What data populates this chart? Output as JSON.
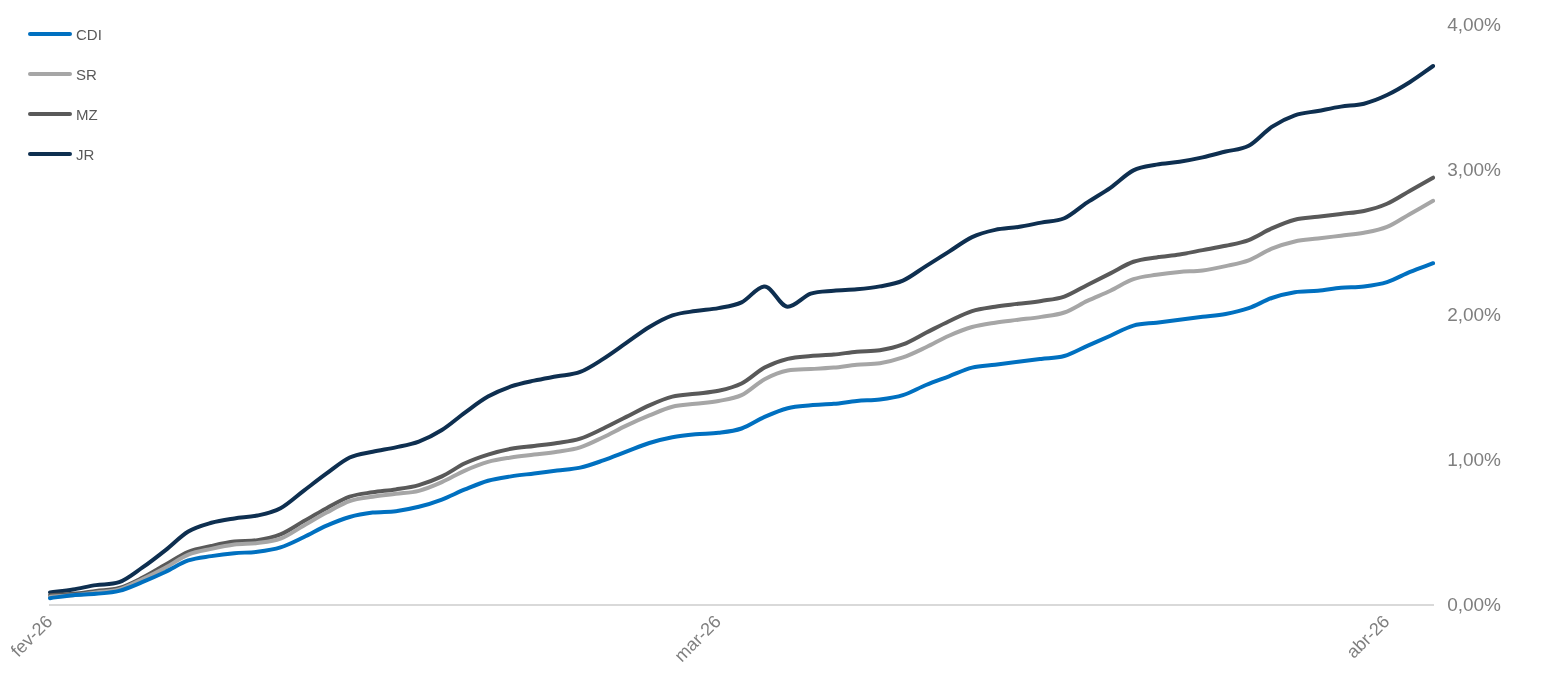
{
  "chart_data": {
    "type": "line",
    "categories": [
      "fev-26",
      null,
      null,
      null,
      null,
      null,
      null,
      null,
      null,
      null,
      null,
      null,
      null,
      null,
      null,
      null,
      null,
      null,
      null,
      null,
      null,
      null,
      null,
      null,
      null,
      null,
      null,
      null,
      null,
      "mar-26",
      null,
      null,
      null,
      null,
      null,
      null,
      null,
      null,
      null,
      null,
      null,
      null,
      null,
      null,
      null,
      null,
      null,
      null,
      null,
      null,
      null,
      null,
      null,
      null,
      null,
      null,
      null,
      null,
      "abr-26",
      null,
      null
    ],
    "series": [
      {
        "name": "CDI",
        "color": "#0070c0",
        "values": [
          0.05,
          0.07,
          0.08,
          0.1,
          0.16,
          0.23,
          0.31,
          0.34,
          0.36,
          0.37,
          0.4,
          0.47,
          0.55,
          0.61,
          0.64,
          0.65,
          0.68,
          0.73,
          0.8,
          0.86,
          0.89,
          0.91,
          0.93,
          0.95,
          1.0,
          1.06,
          1.12,
          1.16,
          1.18,
          1.19,
          1.22,
          1.3,
          1.36,
          1.38,
          1.39,
          1.41,
          1.42,
          1.45,
          1.52,
          1.58,
          1.64,
          1.66,
          1.68,
          1.7,
          1.72,
          1.79,
          1.86,
          1.93,
          1.95,
          1.97,
          1.99,
          2.01,
          2.05,
          2.12,
          2.16,
          2.17,
          2.19,
          2.2,
          2.23,
          2.3,
          2.36
        ]
      },
      {
        "name": "SR",
        "color": "#a6a6a6",
        "values": [
          0.06,
          0.07,
          0.09,
          0.11,
          0.18,
          0.26,
          0.35,
          0.39,
          0.42,
          0.43,
          0.46,
          0.55,
          0.64,
          0.72,
          0.75,
          0.77,
          0.79,
          0.85,
          0.93,
          0.99,
          1.02,
          1.04,
          1.06,
          1.09,
          1.16,
          1.24,
          1.31,
          1.37,
          1.39,
          1.41,
          1.45,
          1.56,
          1.62,
          1.63,
          1.64,
          1.66,
          1.67,
          1.71,
          1.78,
          1.86,
          1.92,
          1.95,
          1.97,
          1.99,
          2.02,
          2.1,
          2.17,
          2.25,
          2.28,
          2.3,
          2.31,
          2.34,
          2.38,
          2.46,
          2.51,
          2.53,
          2.55,
          2.57,
          2.61,
          2.7,
          2.79
        ]
      },
      {
        "name": "MZ",
        "color": "#595959",
        "values": [
          0.07,
          0.08,
          0.1,
          0.12,
          0.19,
          0.28,
          0.37,
          0.41,
          0.44,
          0.45,
          0.49,
          0.58,
          0.67,
          0.75,
          0.78,
          0.8,
          0.83,
          0.89,
          0.98,
          1.04,
          1.08,
          1.1,
          1.12,
          1.15,
          1.22,
          1.3,
          1.38,
          1.44,
          1.46,
          1.48,
          1.53,
          1.64,
          1.7,
          1.72,
          1.73,
          1.75,
          1.76,
          1.8,
          1.88,
          1.96,
          2.03,
          2.06,
          2.08,
          2.1,
          2.13,
          2.21,
          2.29,
          2.37,
          2.4,
          2.42,
          2.45,
          2.48,
          2.52,
          2.6,
          2.66,
          2.68,
          2.7,
          2.72,
          2.77,
          2.86,
          2.95
        ]
      },
      {
        "name": "JR",
        "color": "#0e2f50",
        "values": [
          0.09,
          0.11,
          0.14,
          0.16,
          0.26,
          0.38,
          0.51,
          0.57,
          0.6,
          0.62,
          0.67,
          0.79,
          0.91,
          1.02,
          1.06,
          1.09,
          1.13,
          1.21,
          1.33,
          1.44,
          1.51,
          1.55,
          1.58,
          1.61,
          1.7,
          1.81,
          1.92,
          2.0,
          2.03,
          2.05,
          2.09,
          2.2,
          2.06,
          2.15,
          2.17,
          2.18,
          2.2,
          2.24,
          2.34,
          2.44,
          2.54,
          2.59,
          2.61,
          2.64,
          2.67,
          2.78,
          2.88,
          3.0,
          3.04,
          3.06,
          3.09,
          3.13,
          3.17,
          3.3,
          3.38,
          3.41,
          3.44,
          3.46,
          3.52,
          3.61,
          3.72
        ]
      }
    ],
    "ylim": [
      0,
      4
    ],
    "yticks": [
      {
        "value": 0,
        "label": "0,00%"
      },
      {
        "value": 1,
        "label": "1,00%"
      },
      {
        "value": 2,
        "label": "2,00%"
      },
      {
        "value": 3,
        "label": "3,00%"
      },
      {
        "value": 4,
        "label": "4,00%"
      }
    ],
    "grid": false,
    "legend": "top left",
    "marker": "none",
    "line_style": "solid"
  }
}
